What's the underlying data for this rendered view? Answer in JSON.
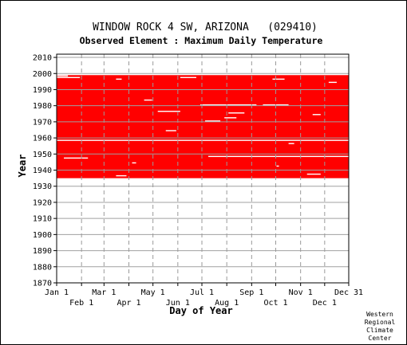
{
  "chart_data": {
    "type": "heatmap",
    "title": "WINDOW ROCK 4 SW, ARIZONA   (029410)",
    "subtitle": "Observed Element : Maximum Daily Temperature",
    "xlabel": "Day of Year",
    "ylabel": "Year",
    "credit": [
      "Western",
      "Regional",
      "Climate",
      "Center"
    ],
    "xlim": [
      1,
      365
    ],
    "ylim": [
      1870,
      2012
    ],
    "x_ticks_top": [
      {
        "label": "Jan 1",
        "day": 1
      },
      {
        "label": "Mar 1",
        "day": 60
      },
      {
        "label": "May 1",
        "day": 121
      },
      {
        "label": "Jul 1",
        "day": 182
      },
      {
        "label": "Sep 1",
        "day": 244
      },
      {
        "label": "Nov 1",
        "day": 305
      },
      {
        "label": "Dec 31",
        "day": 365
      }
    ],
    "x_ticks_bottom": [
      {
        "label": "Feb 1",
        "day": 32
      },
      {
        "label": "Apr 1",
        "day": 91
      },
      {
        "label": "Jun 1",
        "day": 152
      },
      {
        "label": "Aug 1",
        "day": 213
      },
      {
        "label": "Oct 1",
        "day": 274
      },
      {
        "label": "Dec 1",
        "day": 335
      }
    ],
    "y_ticks": [
      2010,
      2000,
      1990,
      1980,
      1970,
      1960,
      1950,
      1940,
      1930,
      1920,
      1910,
      1900,
      1890,
      1880,
      1870
    ],
    "data_color": "#ff0000",
    "record_start_year": 1935,
    "record_end_year": 1998,
    "missing_records": [
      {
        "year": 1998,
        "day_start": 1,
        "day_end": 15
      },
      {
        "year": 1997,
        "day_start": 1,
        "day_end": 30
      },
      {
        "year": 1996,
        "day_start": 75,
        "day_end": 82
      },
      {
        "year": 1997,
        "day_start": 155,
        "day_end": 175
      },
      {
        "year": 1996,
        "day_start": 270,
        "day_end": 285
      },
      {
        "year": 1994,
        "day_start": 340,
        "day_end": 350
      },
      {
        "year": 1983,
        "day_start": 110,
        "day_end": 120
      },
      {
        "year": 1980,
        "day_start": 180,
        "day_end": 250
      },
      {
        "year": 1980,
        "day_start": 258,
        "day_end": 290
      },
      {
        "year": 1976,
        "day_start": 127,
        "day_end": 155
      },
      {
        "year": 1975,
        "day_start": 215,
        "day_end": 235
      },
      {
        "year": 1974,
        "day_start": 320,
        "day_end": 330
      },
      {
        "year": 1972,
        "day_start": 210,
        "day_end": 225
      },
      {
        "year": 1970,
        "day_start": 186,
        "day_end": 205
      },
      {
        "year": 1964,
        "day_start": 137,
        "day_end": 150
      },
      {
        "year": 1958,
        "day_start": 1,
        "day_end": 365
      },
      {
        "year": 1956,
        "day_start": 290,
        "day_end": 297
      },
      {
        "year": 1948,
        "day_start": 190,
        "day_end": 365
      },
      {
        "year": 1947,
        "day_start": 10,
        "day_end": 40
      },
      {
        "year": 1944,
        "day_start": 95,
        "day_end": 100
      },
      {
        "year": 1942,
        "day_start": 275,
        "day_end": 278
      },
      {
        "year": 1937,
        "day_start": 313,
        "day_end": 330
      },
      {
        "year": 1936,
        "day_start": 75,
        "day_end": 88
      }
    ]
  }
}
